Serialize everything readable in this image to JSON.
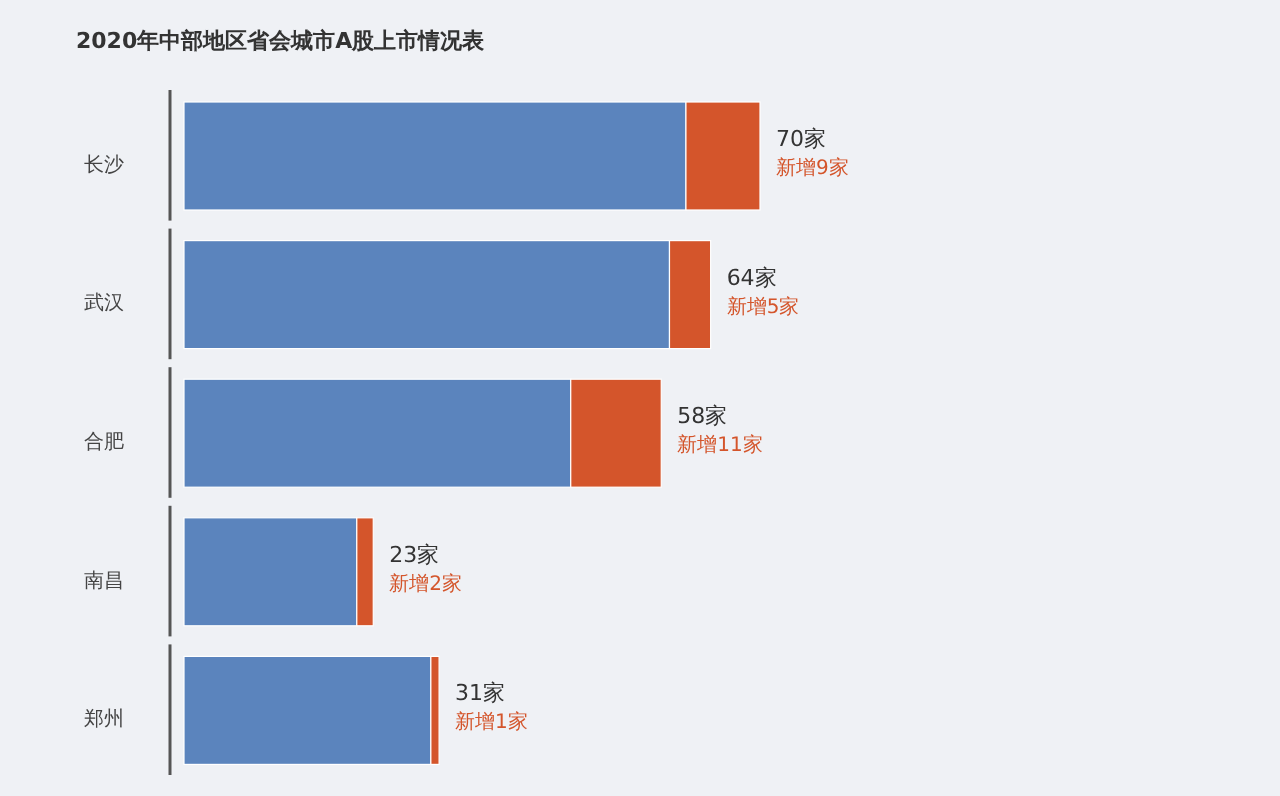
{
  "chart_data": {
    "type": "bar",
    "orientation": "horizontal",
    "stacked": true,
    "title": "2020年中部地区省会城市A股上市情况表",
    "categories": [
      "长沙",
      "武汉",
      "合肥",
      "南昌",
      "郑州"
    ],
    "series": [
      {
        "color": "#5b84bd",
        "values": [
          61,
          59,
          47,
          21,
          30
        ]
      },
      {
        "color": "#d4552b",
        "values": [
          9,
          5,
          11,
          2,
          1
        ],
        "value_labels": [
          "新增9家",
          "新增5家",
          "新增11家",
          "新增2家",
          "新增1家"
        ]
      }
    ],
    "totals": [
      "70家",
      "64家",
      "58家",
      "23家",
      "31家"
    ]
  }
}
